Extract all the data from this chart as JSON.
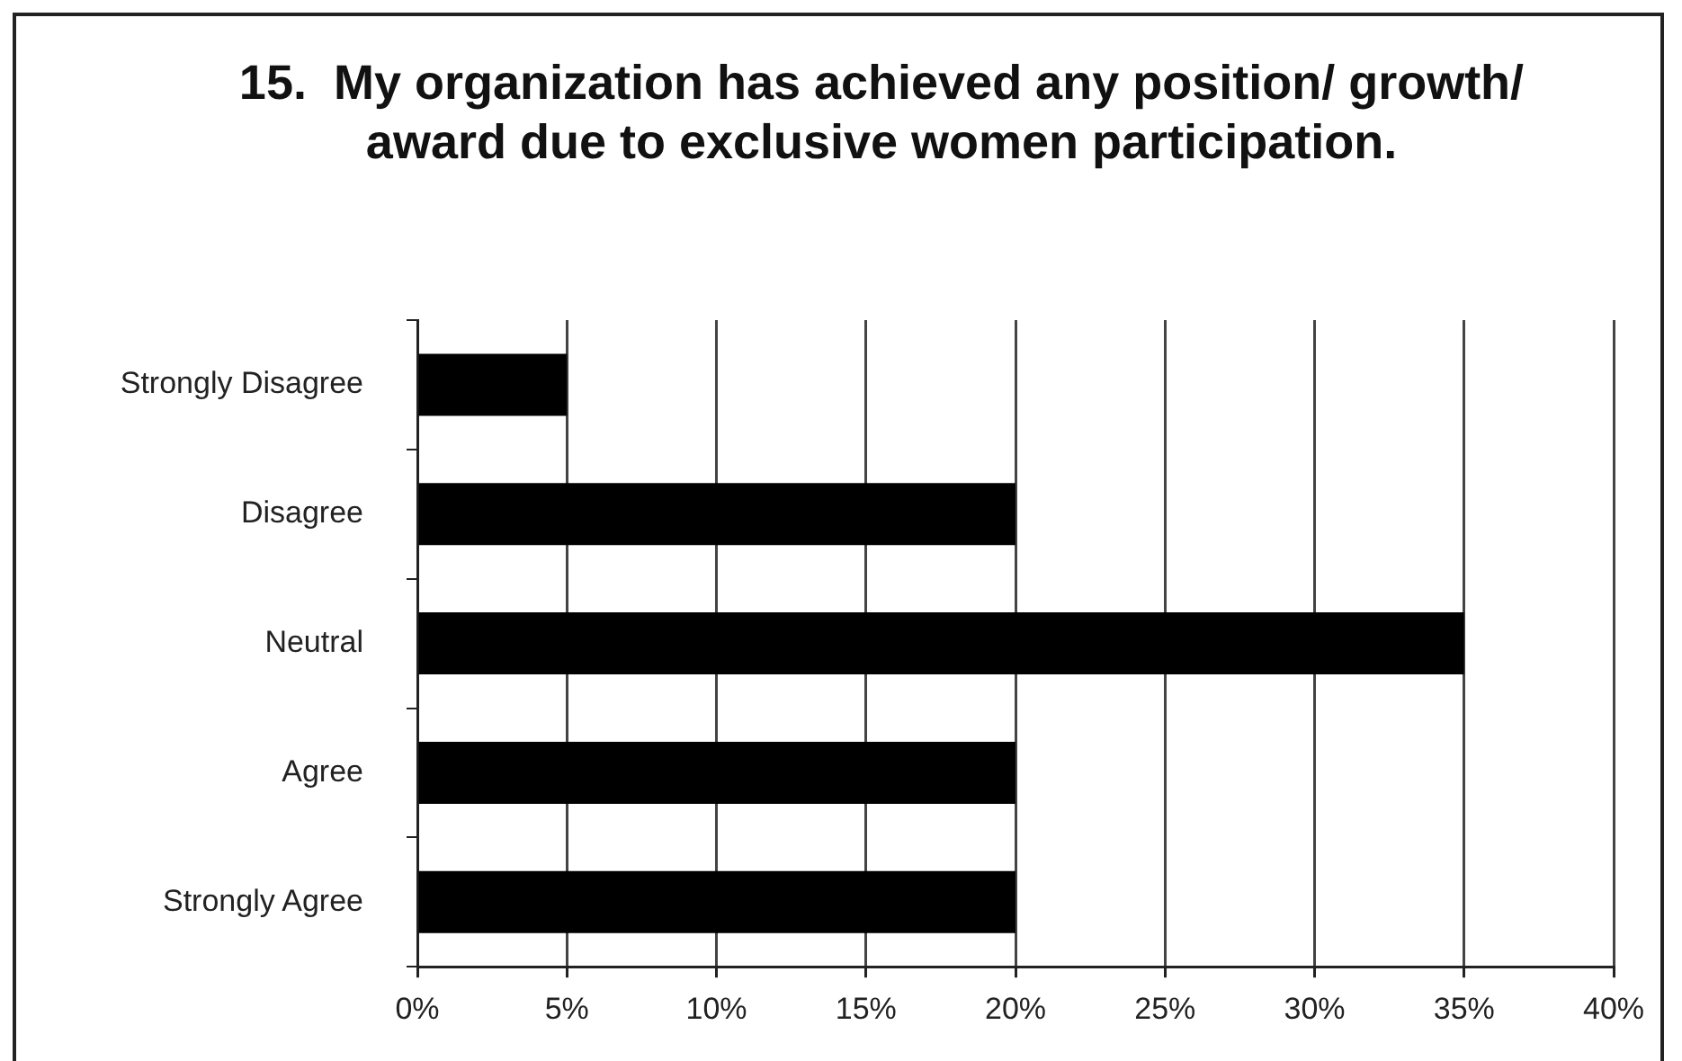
{
  "chart_data": {
    "type": "bar",
    "orientation": "horizontal",
    "title": "15.  My organization has achieved any position/ growth/ award due to exclusive women participation.",
    "categories": [
      "Strongly Disagree",
      "Disagree",
      "Neutral",
      "Agree",
      "Strongly Agree"
    ],
    "values": [
      5,
      20,
      35,
      20,
      20
    ],
    "color": "#000000",
    "xlim": [
      0,
      40
    ],
    "xticks": [
      {
        "value": 0,
        "label": "0%"
      },
      {
        "value": 5,
        "label": "5%"
      },
      {
        "value": 10,
        "label": "10%"
      },
      {
        "value": 15,
        "label": "15%"
      },
      {
        "value": 20,
        "label": "20%"
      },
      {
        "value": 25,
        "label": "25%"
      },
      {
        "value": 30,
        "label": "30%"
      },
      {
        "value": 35,
        "label": "35%"
      },
      {
        "value": 40,
        "label": "40%"
      }
    ],
    "grid": "x",
    "legend": false
  }
}
